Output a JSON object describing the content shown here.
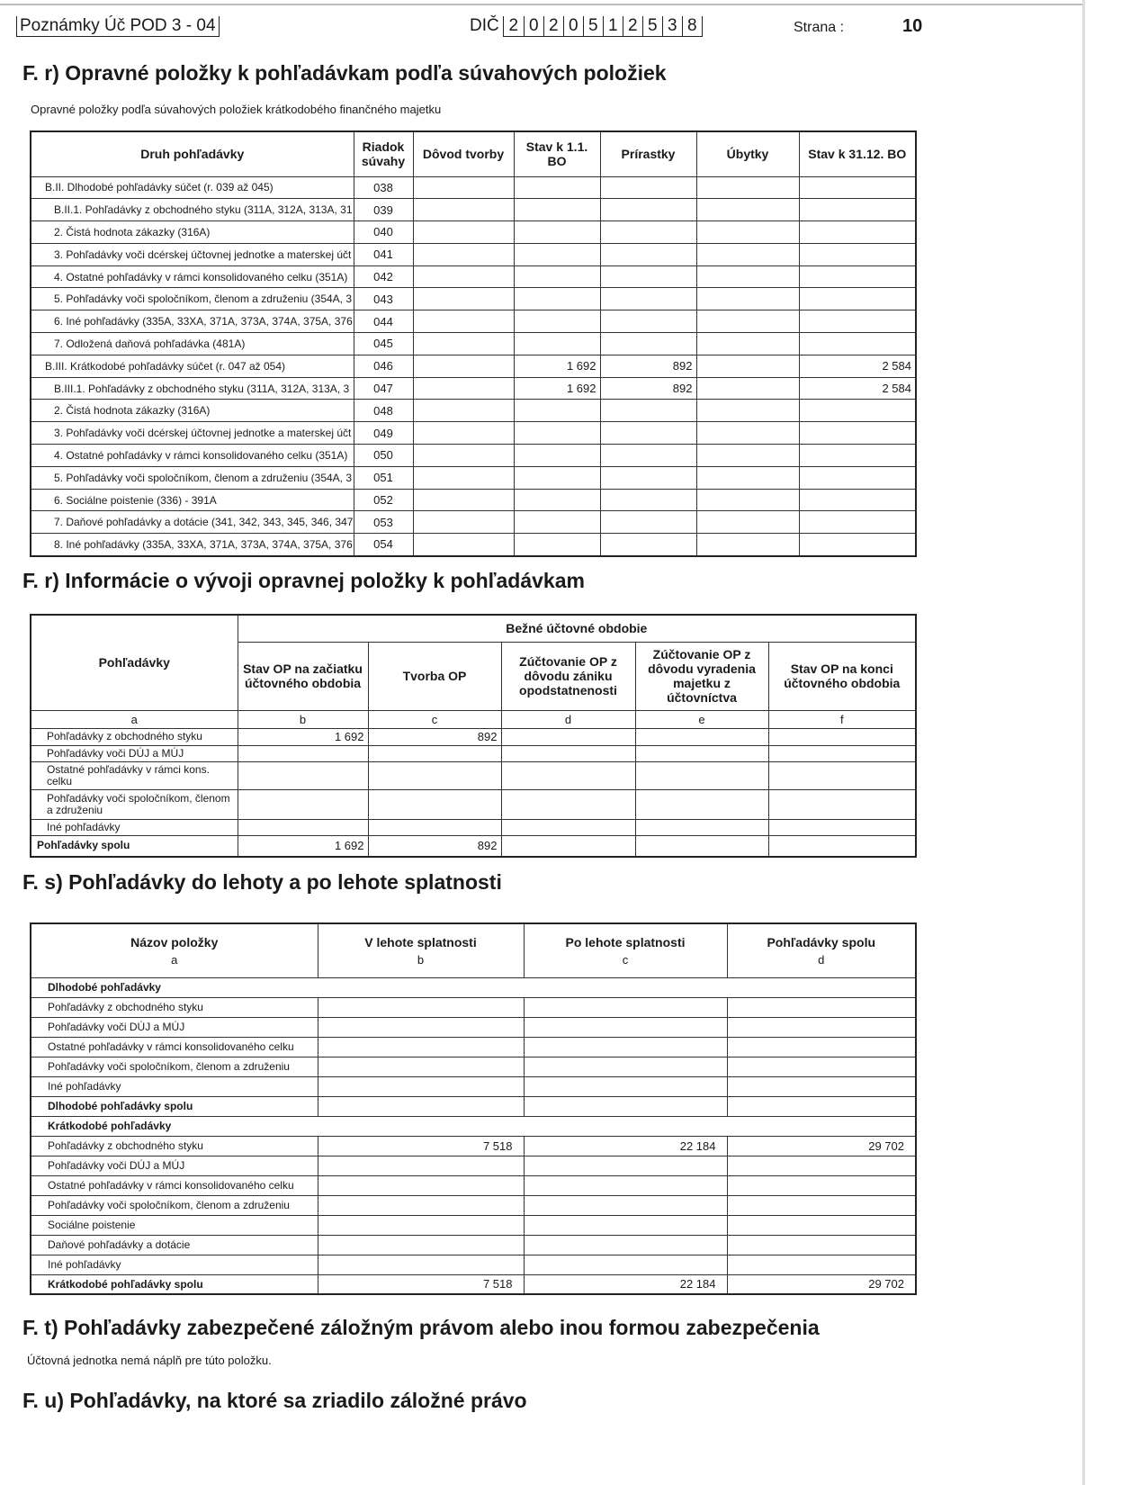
{
  "header": {
    "form": "Poznámky Úč POD 3 - 04",
    "dic_label": "DIČ",
    "dic_digits": [
      "2",
      "0",
      "2",
      "0",
      "5",
      "1",
      "2",
      "5",
      "3",
      "8"
    ],
    "page_label": "Strana :",
    "page_number": "10"
  },
  "sec1": {
    "title": "F. r) Opravné položky k pohľadávkam podľa súvahových položiek",
    "subtitle": "Opravné položky podľa súvahových položiek krátkodobého finančného majetku",
    "columns": [
      "Druh pohľadávky",
      "Riadok súvahy",
      "Dôvod tvorby",
      "Stav k 1.1. BO",
      "Prírastky",
      "Úbytky",
      "Stav k 31.12. BO"
    ],
    "rows": [
      {
        "label": "B.II. Dlhodobé pohľadávky súčet (r. 039 až 045)",
        "row": "038",
        "level": 0,
        "dovod": "",
        "start": "",
        "inc": "",
        "dec": "",
        "end": ""
      },
      {
        "label": "B.II.1. Pohľadávky z obchodného styku (311A, 312A, 313A, 31",
        "row": "039",
        "level": 1,
        "dovod": "",
        "start": "",
        "inc": "",
        "dec": "",
        "end": ""
      },
      {
        "label": "2. Čistá hodnota zákazky (316A)",
        "row": "040",
        "level": 1,
        "dovod": "",
        "start": "",
        "inc": "",
        "dec": "",
        "end": ""
      },
      {
        "label": "3. Pohľadávky voči dcérskej účtovnej jednotke a materskej účt",
        "row": "041",
        "level": 1,
        "dovod": "",
        "start": "",
        "inc": "",
        "dec": "",
        "end": ""
      },
      {
        "label": "4. Ostatné pohľadávky v rámci konsolidovaného celku (351A)",
        "row": "042",
        "level": 1,
        "dovod": "",
        "start": "",
        "inc": "",
        "dec": "",
        "end": ""
      },
      {
        "label": "5. Pohľadávky voči spoločníkom, členom a združeniu (354A, 3",
        "row": "043",
        "level": 1,
        "dovod": "",
        "start": "",
        "inc": "",
        "dec": "",
        "end": ""
      },
      {
        "label": "6. Iné pohľadávky (335A, 33XA, 371A, 373A, 374A, 375A, 376",
        "row": "044",
        "level": 1,
        "dovod": "",
        "start": "",
        "inc": "",
        "dec": "",
        "end": ""
      },
      {
        "label": "7. Odložená daňová pohľadávka (481A)",
        "row": "045",
        "level": 1,
        "dovod": "",
        "start": "",
        "inc": "",
        "dec": "",
        "end": ""
      },
      {
        "label": "B.III. Krátkodobé pohľadávky súčet (r. 047 až 054)",
        "row": "046",
        "level": 0,
        "dovod": "",
        "start": "1 692",
        "inc": "892",
        "dec": "",
        "end": "2 584"
      },
      {
        "label": "B.III.1. Pohľadávky z obchodného styku (311A, 312A, 313A, 3",
        "row": "047",
        "level": 1,
        "dovod": "",
        "start": "1 692",
        "inc": "892",
        "dec": "",
        "end": "2 584"
      },
      {
        "label": "2. Čistá hodnota zákazky (316A)",
        "row": "048",
        "level": 1,
        "dovod": "",
        "start": "",
        "inc": "",
        "dec": "",
        "end": ""
      },
      {
        "label": "3. Pohľadávky voči dcérskej účtovnej jednotke a materskej účt",
        "row": "049",
        "level": 1,
        "dovod": "",
        "start": "",
        "inc": "",
        "dec": "",
        "end": ""
      },
      {
        "label": "4. Ostatné pohľadávky v rámci konsolidovaného celku (351A)",
        "row": "050",
        "level": 1,
        "dovod": "",
        "start": "",
        "inc": "",
        "dec": "",
        "end": ""
      },
      {
        "label": "5. Pohľadávky voči spoločníkom, členom a združeniu (354A, 3",
        "row": "051",
        "level": 1,
        "dovod": "",
        "start": "",
        "inc": "",
        "dec": "",
        "end": ""
      },
      {
        "label": "6. Sociálne poistenie (336) - 391A",
        "row": "052",
        "level": 1,
        "dovod": "",
        "start": "",
        "inc": "",
        "dec": "",
        "end": ""
      },
      {
        "label": "7. Daňové pohľadávky a dotácie (341, 342, 343, 345, 346, 347",
        "row": "053",
        "level": 1,
        "dovod": "",
        "start": "",
        "inc": "",
        "dec": "",
        "end": ""
      },
      {
        "label": "8. Iné pohľadávky (335A, 33XA, 371A, 373A, 374A, 375A, 376",
        "row": "054",
        "level": 1,
        "dovod": "",
        "start": "",
        "inc": "",
        "dec": "",
        "end": ""
      }
    ]
  },
  "sec2": {
    "title": "F. r) Informácie o vývoji opravnej položky k pohľadávkam",
    "group": "Bežné účtovné obdobie",
    "columns": [
      "Pohľadávky",
      "Stav OP na začiatku účtovného obdobia",
      "Tvorba OP",
      "Zúčtovanie OP z dôvodu zániku opodstatnenosti",
      "Zúčtovanie OP z dôvodu vyradenia majetku z účtovníctva",
      "Stav OP na konci účtovného obdobia"
    ],
    "letters": [
      "a",
      "b",
      "c",
      "d",
      "e",
      "f"
    ],
    "rows": [
      {
        "label": "Pohľadávky z obchodného styku",
        "values": [
          "1 692",
          "892",
          "",
          "",
          ""
        ]
      },
      {
        "label": "Pohľadávky voči DÚJ a MÚJ",
        "values": [
          "",
          "",
          "",
          "",
          ""
        ]
      },
      {
        "label": "Ostatné pohľadávky v rámci kons. celku",
        "values": [
          "",
          "",
          "",
          "",
          ""
        ]
      },
      {
        "label": "Pohľadávky voči spoločníkom, členom a združeniu",
        "values": [
          "",
          "",
          "",
          "",
          ""
        ]
      },
      {
        "label": "Iné pohľadávky",
        "values": [
          "",
          "",
          "",
          "",
          ""
        ]
      },
      {
        "label": "Pohľadávky spolu",
        "bold": true,
        "values": [
          "1 692",
          "892",
          "",
          "",
          ""
        ]
      }
    ]
  },
  "sec3": {
    "title": "F. s) Pohľadávky do lehoty a po lehote splatnosti",
    "columns": [
      "Názov položky",
      "V lehote splatnosti",
      "Po lehote splatnosti",
      "Pohľadávky spolu"
    ],
    "letters": [
      "a",
      "b",
      "c",
      "d"
    ],
    "rows": [
      {
        "label": "Dlhodobé pohľadávky",
        "bold": true,
        "values": []
      },
      {
        "label": "Pohľadávky  z obchodného styku",
        "values": [
          "",
          "",
          ""
        ]
      },
      {
        "label": "Pohľadávky voči DÚJ a MÚJ",
        "values": [
          "",
          "",
          ""
        ]
      },
      {
        "label": "Ostatné pohľadávky v rámci konsolidovaného celku",
        "values": [
          "",
          "",
          ""
        ]
      },
      {
        "label": "Pohľadávky voči spoločníkom, členom a združeniu",
        "values": [
          "",
          "",
          ""
        ]
      },
      {
        "label": "Iné pohľadávky",
        "values": [
          "",
          "",
          ""
        ]
      },
      {
        "label": "Dlhodobé pohľadávky spolu",
        "bold": true,
        "values": [
          "",
          "",
          ""
        ]
      },
      {
        "label": "Krátkodobé pohľadávky",
        "bold": true,
        "values": []
      },
      {
        "label": "Pohľadávky z obchodného styku",
        "values": [
          "7 518",
          "22 184",
          "29 702"
        ]
      },
      {
        "label": "Pohľadávky voči DÚJ a MÚJ",
        "values": [
          "",
          "",
          ""
        ]
      },
      {
        "label": "Ostatné pohľadávky v rámci konsolidovaného celku",
        "values": [
          "",
          "",
          ""
        ]
      },
      {
        "label": "Pohľadávky voči spoločníkom, členom a združeniu",
        "values": [
          "",
          "",
          ""
        ]
      },
      {
        "label": "Sociálne poistenie",
        "values": [
          "",
          "",
          ""
        ]
      },
      {
        "label": "Daňové pohľadávky a dotácie",
        "values": [
          "",
          "",
          ""
        ]
      },
      {
        "label": "Iné pohľadávky",
        "values": [
          "",
          "",
          ""
        ]
      },
      {
        "label": "Krátkodobé pohľadávky spolu",
        "bold": true,
        "values": [
          "7 518",
          "22 184",
          "29 702"
        ]
      }
    ]
  },
  "sec4": {
    "title": "F. t) Pohľadávky zabezpečené záložným právom alebo inou formou zabezpečenia",
    "text": "Účtovná jednotka nemá náplň pre túto položku."
  },
  "sec5": {
    "title": "F. u) Pohľadávky, na ktoré sa zriadilo záložné právo"
  }
}
